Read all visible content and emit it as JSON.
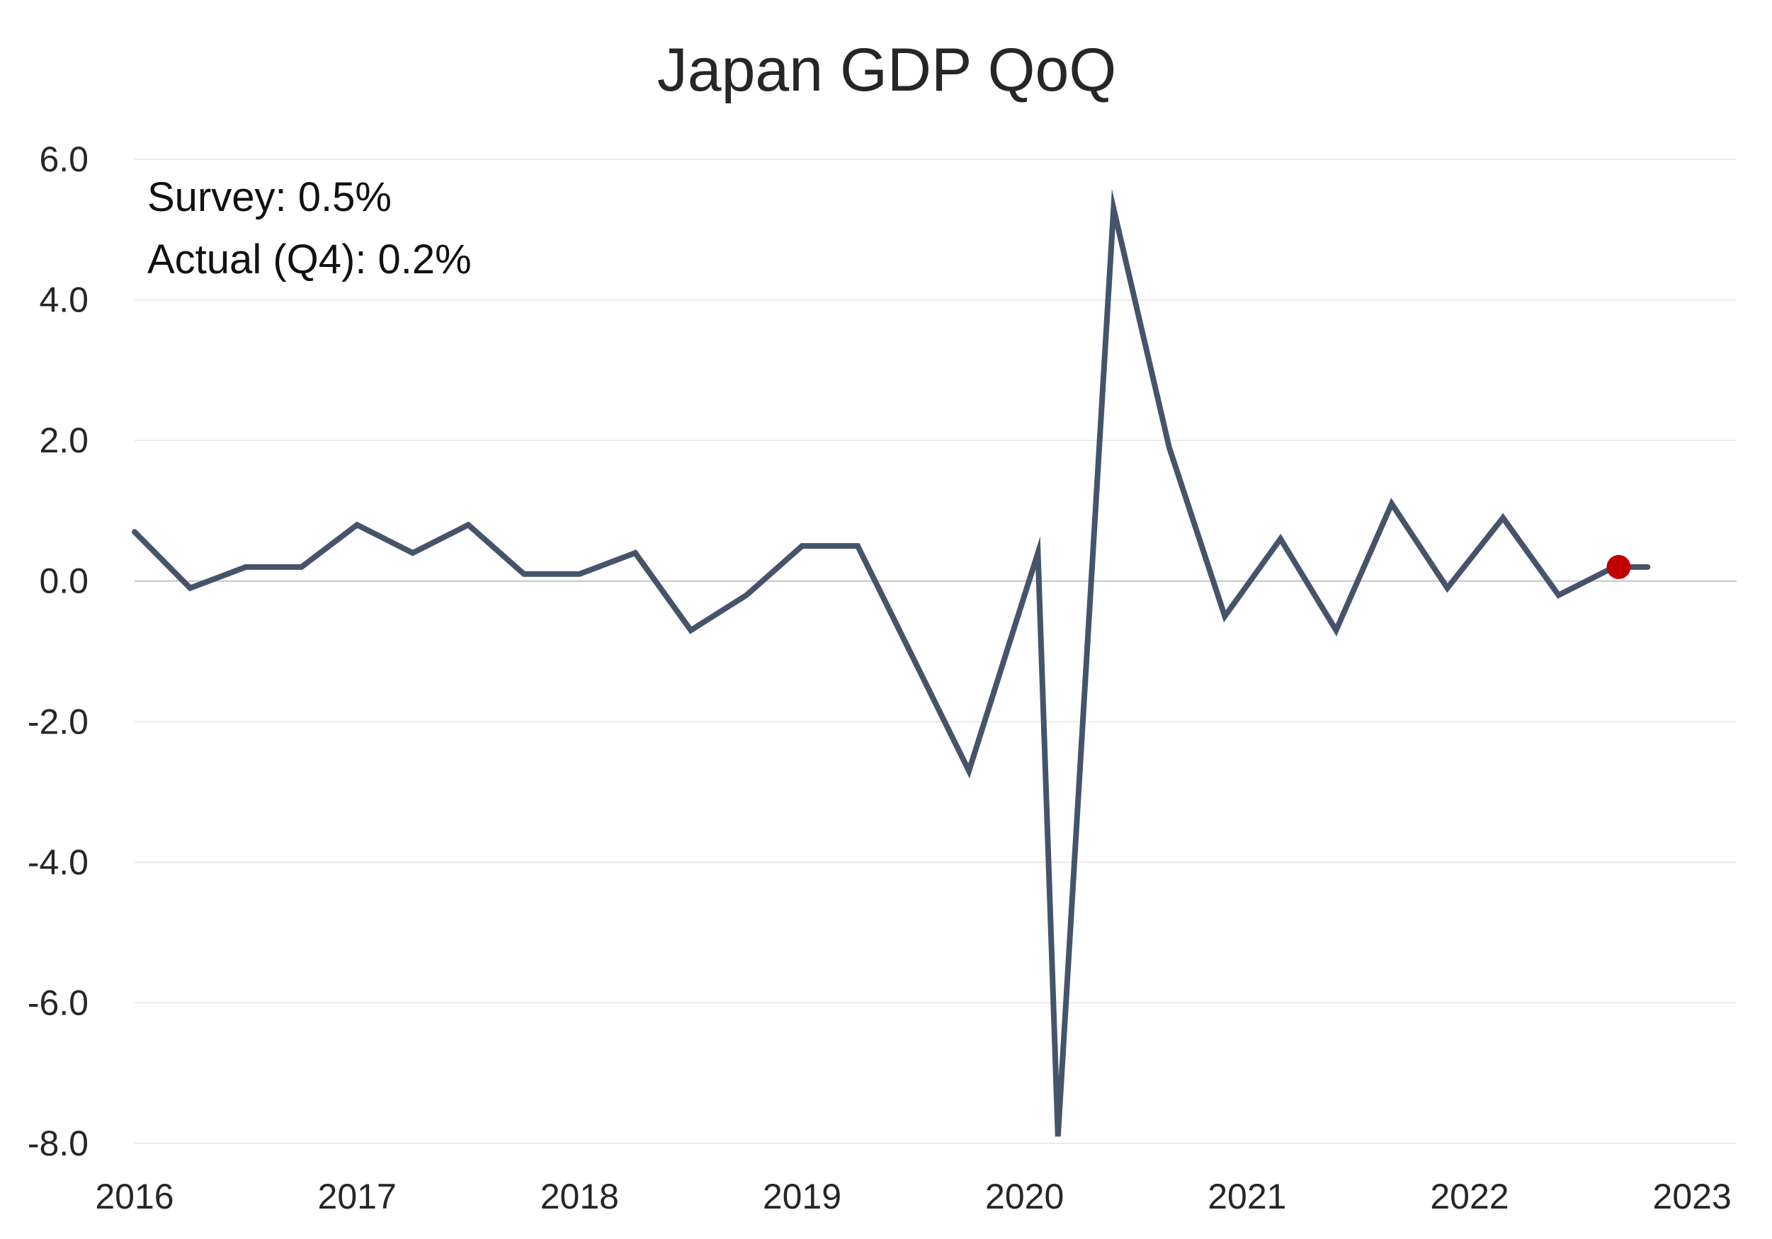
{
  "chart_data": {
    "type": "line",
    "title": "Japan GDP QoQ",
    "xlabel": "",
    "ylabel": "",
    "ylim": [
      -8.0,
      6.0
    ],
    "yticks": [
      "6.0",
      "4.0",
      "2.0",
      "0.0",
      "-2.0",
      "-4.0",
      "-6.0",
      "-8.0"
    ],
    "ytick_values": [
      6,
      4,
      2,
      0,
      -2,
      -4,
      -6,
      -8
    ],
    "xlim": [
      2016.0,
      2023.2
    ],
    "xticks": [
      "2016",
      "2017",
      "2018",
      "2019",
      "2020",
      "2021",
      "2022",
      "2023"
    ],
    "xtick_values": [
      2016,
      2017,
      2018,
      2019,
      2020,
      2021,
      2022,
      2023
    ],
    "grid": true,
    "line_color": "#45546b",
    "highlight_color": "#c00000",
    "annotations": [
      "Survey: 0.5%",
      "Actual (Q4): 0.2%"
    ],
    "series": [
      {
        "x": [
          2016.0,
          2016.25,
          2016.5,
          2016.75,
          2017.0,
          2017.25,
          2017.5,
          2017.75,
          2018.0,
          2018.25,
          2018.5,
          2018.75,
          2019.0,
          2019.25,
          2019.5,
          2019.75,
          2020.06,
          2020.15,
          2020.4,
          2020.65,
          2020.9,
          2021.15,
          2021.4,
          2021.65,
          2021.9,
          2022.15,
          2022.4,
          2022.65,
          2022.8
        ],
        "values": [
          0.7,
          -0.1,
          0.2,
          0.2,
          0.8,
          0.4,
          0.8,
          0.1,
          0.1,
          0.4,
          -0.7,
          -0.2,
          0.5,
          0.5,
          -1.1,
          -2.7,
          0.4,
          -7.9,
          5.3,
          1.9,
          -0.5,
          0.6,
          -0.7,
          1.1,
          -0.1,
          0.9,
          -0.2,
          0.2,
          0.2
        ]
      }
    ],
    "highlight_point": {
      "x": 2022.67,
      "value": 0.2
    }
  }
}
